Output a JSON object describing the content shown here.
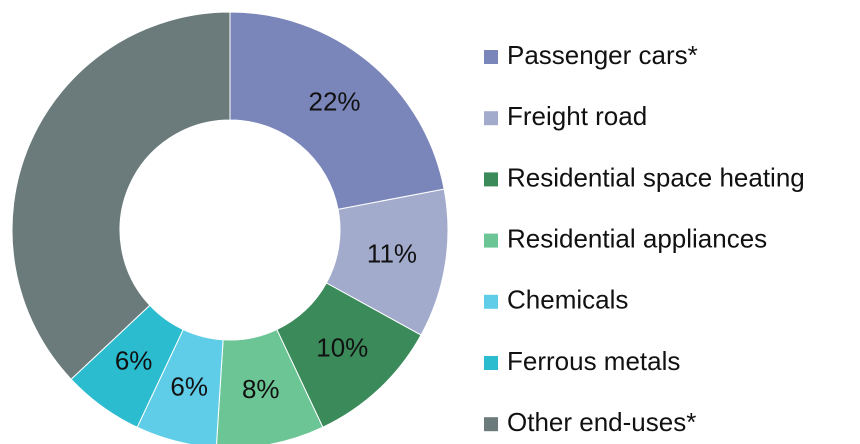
{
  "chart_data": {
    "type": "pie",
    "categories": [
      "Passenger cars*",
      "Freight road",
      "Residential space heating",
      "Residential appliances",
      "Chemicals",
      "Ferrous metals",
      "Other end-uses*"
    ],
    "values": [
      22,
      11,
      10,
      8,
      6,
      6,
      37
    ],
    "value_labels": [
      "22%",
      "11%",
      "10%",
      "8%",
      "6%",
      "6%",
      null
    ],
    "colors": [
      "#7a86ba",
      "#a3abcd",
      "#3a8a5a",
      "#6cc594",
      "#5fcde8",
      "#2bbcd0",
      "#6b7b7b"
    ],
    "legend": "right"
  }
}
